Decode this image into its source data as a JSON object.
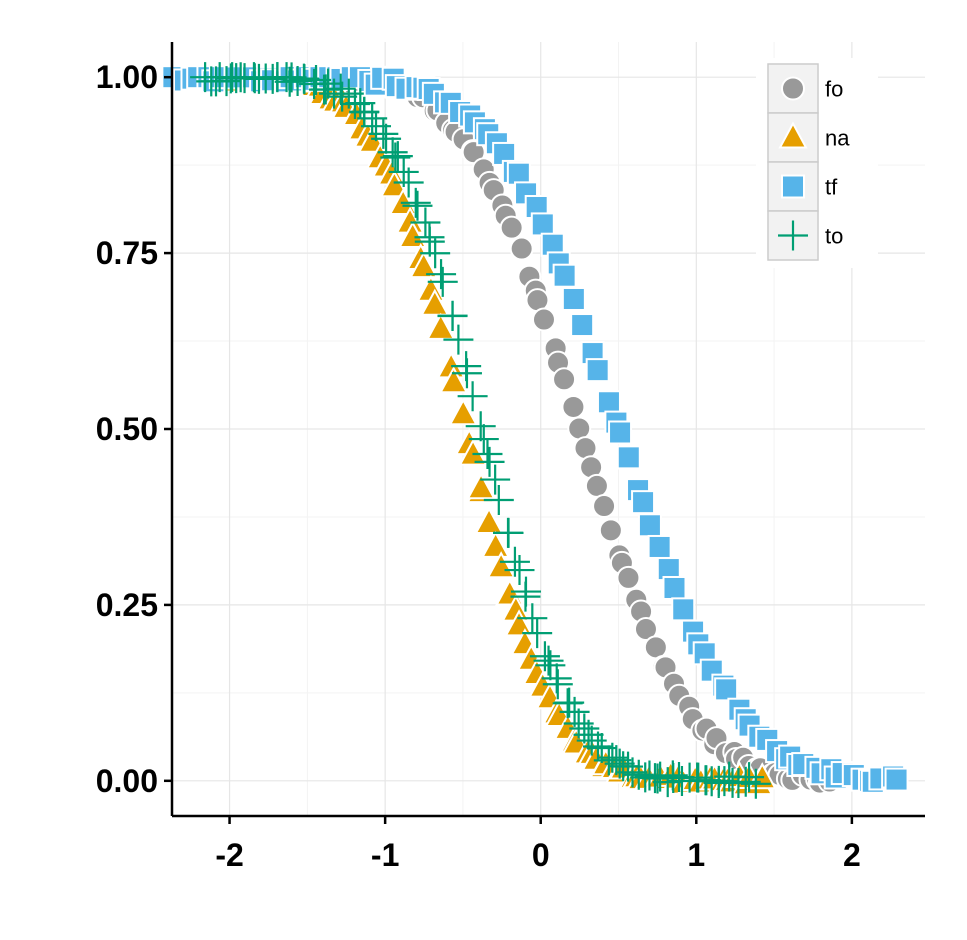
{
  "chart_data": {
    "type": "scatter",
    "title": "",
    "xlabel": "",
    "ylabel": "",
    "xlim": [
      -2.37,
      2.47
    ],
    "ylim": [
      -0.05,
      1.05
    ],
    "x_ticks": [
      -2,
      -1,
      0,
      1,
      2
    ],
    "x_tick_labels": [
      "-2",
      "-1",
      "0",
      "1",
      "2"
    ],
    "y_ticks": [
      0,
      0.25,
      0.5,
      0.75,
      1.0
    ],
    "y_tick_labels": [
      "0.00",
      "0.25",
      "0.50",
      "0.75",
      "1.00"
    ],
    "grid": true,
    "legend_position": "top-right",
    "series": [
      {
        "name": "fo",
        "shape": "circle",
        "color": "#999999",
        "center": 0.25,
        "scale": 0.55,
        "xmin": -1.97,
        "xmax": 1.88,
        "n": 95
      },
      {
        "name": "na",
        "shape": "triangle",
        "color": "#E69F00",
        "center": -0.48,
        "scale": 0.45,
        "xmin": -2.15,
        "xmax": 1.42,
        "n": 95
      },
      {
        "name": "tf",
        "shape": "square",
        "color": "#56B4E9",
        "center": 0.5,
        "scale": 0.6,
        "xmin": -2.35,
        "xmax": 2.3,
        "n": 95
      },
      {
        "name": "to",
        "shape": "plus",
        "color": "#009E73",
        "center": -0.38,
        "scale": 0.45,
        "xmin": -2.15,
        "xmax": 1.37,
        "n": 120
      }
    ]
  }
}
